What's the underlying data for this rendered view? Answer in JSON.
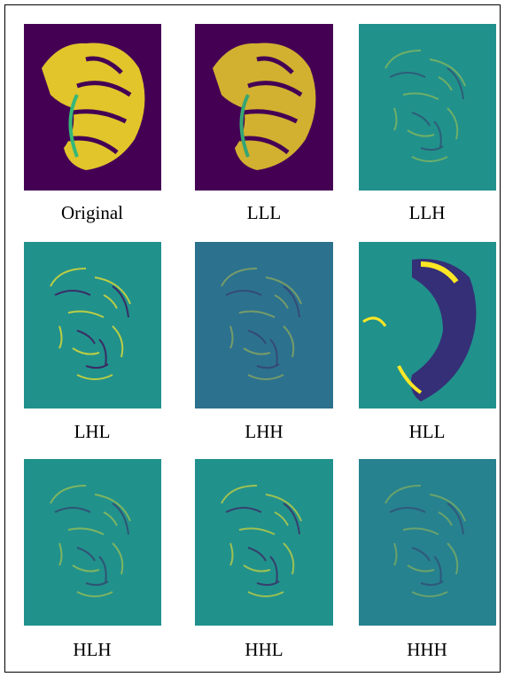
{
  "panels": [
    {
      "label": "Original"
    },
    {
      "label": "LLL"
    },
    {
      "label": "LLH"
    },
    {
      "label": "LHL"
    },
    {
      "label": "LHH"
    },
    {
      "label": "HLL"
    },
    {
      "label": "HLH"
    },
    {
      "label": "HHL"
    },
    {
      "label": "HHH"
    }
  ]
}
